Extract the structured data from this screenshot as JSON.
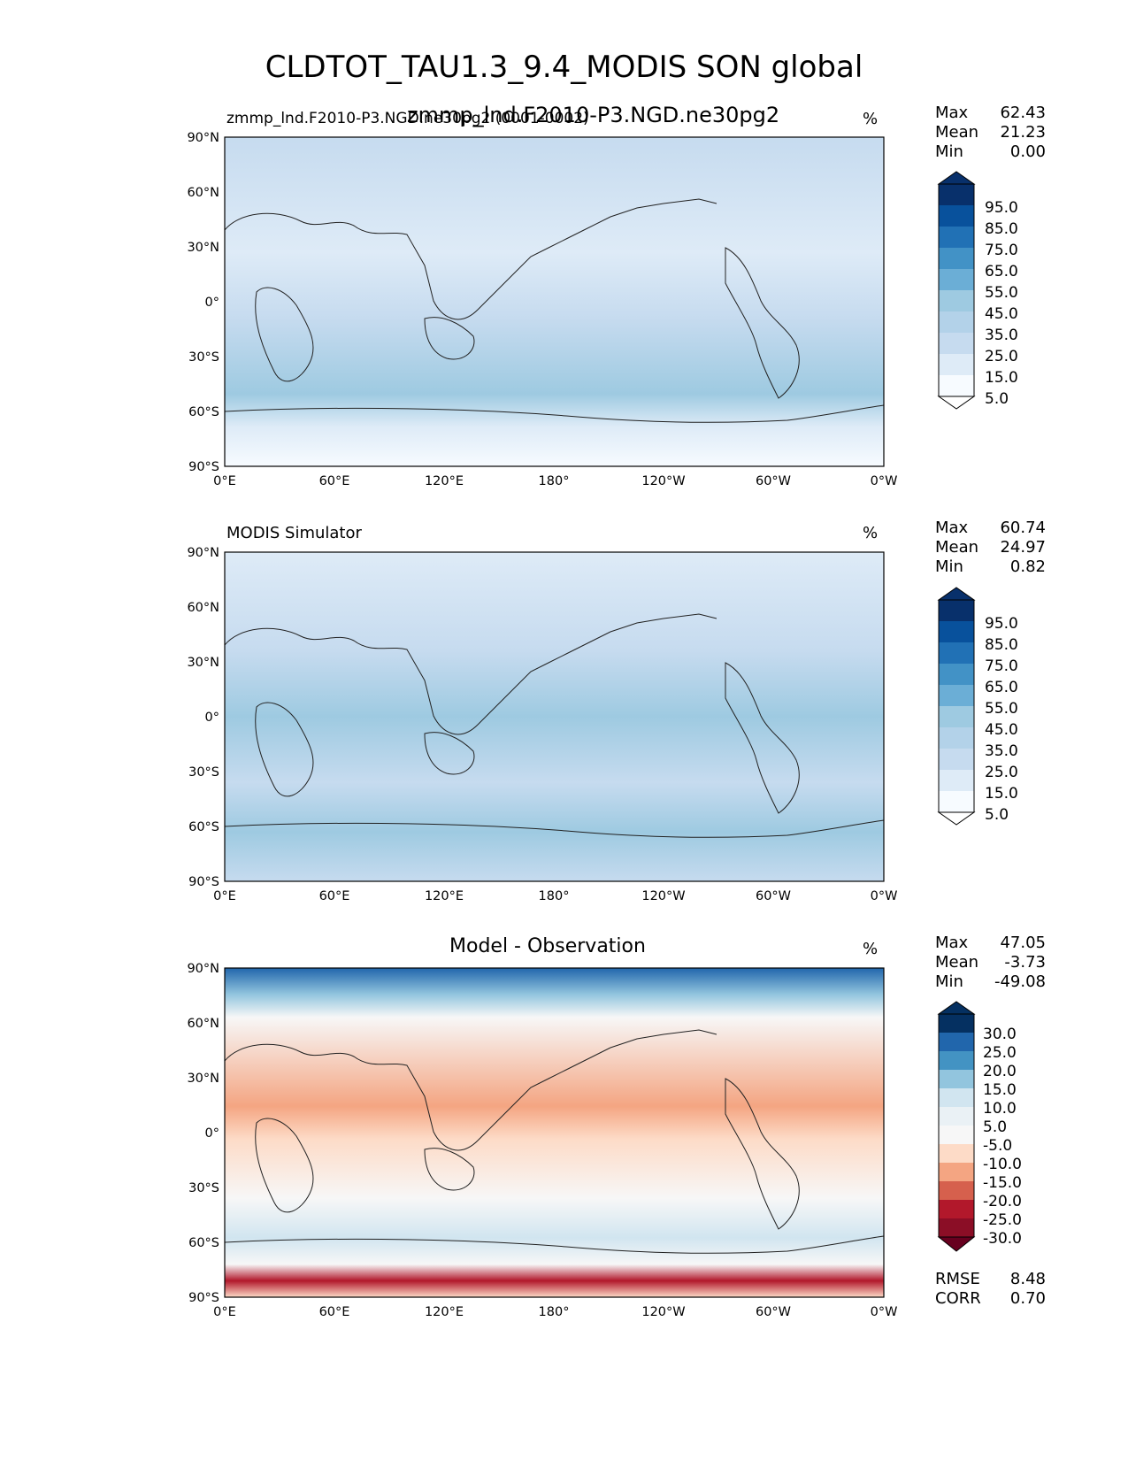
{
  "figure": {
    "title": "CLDTOT_TAU1.3_9.4_MODIS SON global",
    "overlap_subtitle": "zmmp_lnd.F2010-P3.NGD.ne30pg2"
  },
  "panels": [
    {
      "title": "zmmp_lnd.F2010-P3.NGD.ne30pg2 (0001-0002)",
      "units": "%",
      "stats": {
        "Max": "62.43",
        "Mean": "21.23",
        "Min": "0.00"
      },
      "colorbar": {
        "labels": [
          "95.0",
          "85.0",
          "75.0",
          "65.0",
          "55.0",
          "45.0",
          "35.0",
          "25.0",
          "15.0",
          "5.0"
        ]
      }
    },
    {
      "title": "MODIS Simulator",
      "units": "%",
      "stats": {
        "Max": "60.74",
        "Mean": "24.97",
        "Min": "0.82"
      },
      "colorbar": {
        "labels": [
          "95.0",
          "85.0",
          "75.0",
          "65.0",
          "55.0",
          "45.0",
          "35.0",
          "25.0",
          "15.0",
          "5.0"
        ]
      }
    },
    {
      "title": "Model - Observation",
      "units": "%",
      "stats": {
        "Max": "47.05",
        "Mean": "-3.73",
        "Min": "-49.08"
      },
      "colorbar": {
        "labels": [
          "30.0",
          "25.0",
          "20.0",
          "15.0",
          "10.0",
          "5.0",
          "-5.0",
          "-10.0",
          "-15.0",
          "-20.0",
          "-25.0",
          "-30.0"
        ]
      },
      "metrics": {
        "RMSE": "8.48",
        "CORR": "0.70"
      }
    }
  ],
  "axes": {
    "lat_labels": [
      "90°N",
      "60°N",
      "30°N",
      "0°",
      "30°S",
      "60°S",
      "90°S"
    ],
    "lon_labels": [
      "0°E",
      "60°E",
      "120°E",
      "180°",
      "120°W",
      "60°W",
      "0°W"
    ]
  },
  "colors": {
    "blues": [
      "#f7fbff",
      "#deebf7",
      "#c6dbef",
      "#b3d2e9",
      "#9ecae1",
      "#6baed6",
      "#4292c6",
      "#2171b5",
      "#08519c",
      "#08306b"
    ],
    "diverging": [
      "#67001f",
      "#b2182b",
      "#d6604d",
      "#f4a582",
      "#fddbc7",
      "#f7f7f7",
      "#d1e5f0",
      "#92c5de",
      "#4393c3",
      "#2166ac",
      "#053061"
    ]
  }
}
